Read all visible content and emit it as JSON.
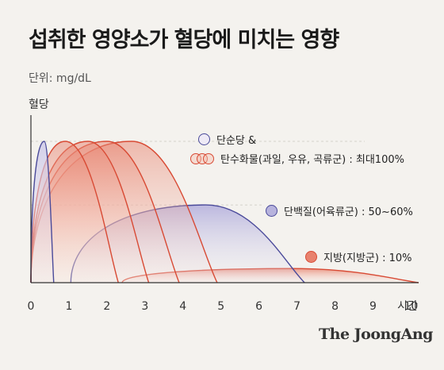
{
  "chart_data": {
    "type": "area",
    "title": "섭취한 영양소가 혈당에 미치는 영향",
    "subtitle": "단위: mg/dL",
    "ylabel": "혈당",
    "xlabel": "시간",
    "xlim": [
      0,
      10
    ],
    "x_ticks": [
      "0",
      "1",
      "2",
      "3",
      "4",
      "5",
      "6",
      "7",
      "8",
      "9",
      "10"
    ],
    "grid": false,
    "legend": [
      {
        "label": "단순당 &",
        "marker": "light-circle"
      },
      {
        "label": "탄수화물(과일, 우유, 곡류군) : 최대100%",
        "marker": "triple-circle"
      },
      {
        "label": "단백질(어육류군) : 50~60%",
        "marker": "lavender-circle"
      },
      {
        "label": "지방(지방군) : 10%",
        "marker": "coral-circle"
      }
    ],
    "series": [
      {
        "group": "simple-carb",
        "start": 0,
        "end": 0.6,
        "peak_x": 0.35,
        "peak": 100,
        "color": "#4a4a9a"
      },
      {
        "group": "simple-carb",
        "start": 0,
        "end": 2.3,
        "peak_x": 0.9,
        "peak": 100,
        "color": "#d84a34"
      },
      {
        "group": "simple-carb",
        "start": 0,
        "end": 3.1,
        "peak_x": 1.5,
        "peak": 100,
        "color": "#d84a34"
      },
      {
        "group": "simple-carb",
        "start": 0,
        "end": 3.9,
        "peak_x": 2.0,
        "peak": 100,
        "color": "#d84a34"
      },
      {
        "group": "simple-carb",
        "start": 0,
        "end": 4.9,
        "peak_x": 2.65,
        "peak": 100,
        "color": "#d84a34"
      },
      {
        "group": "protein",
        "start": 1.05,
        "end": 7.2,
        "peak_x": 4.6,
        "peak": 55,
        "color": "#4a4a9a"
      },
      {
        "group": "fat",
        "start": 2.4,
        "end": 10.2,
        "peak_x": 6.9,
        "peak": 10,
        "color": "#d84a34"
      }
    ]
  },
  "brand": "The JoongAng"
}
